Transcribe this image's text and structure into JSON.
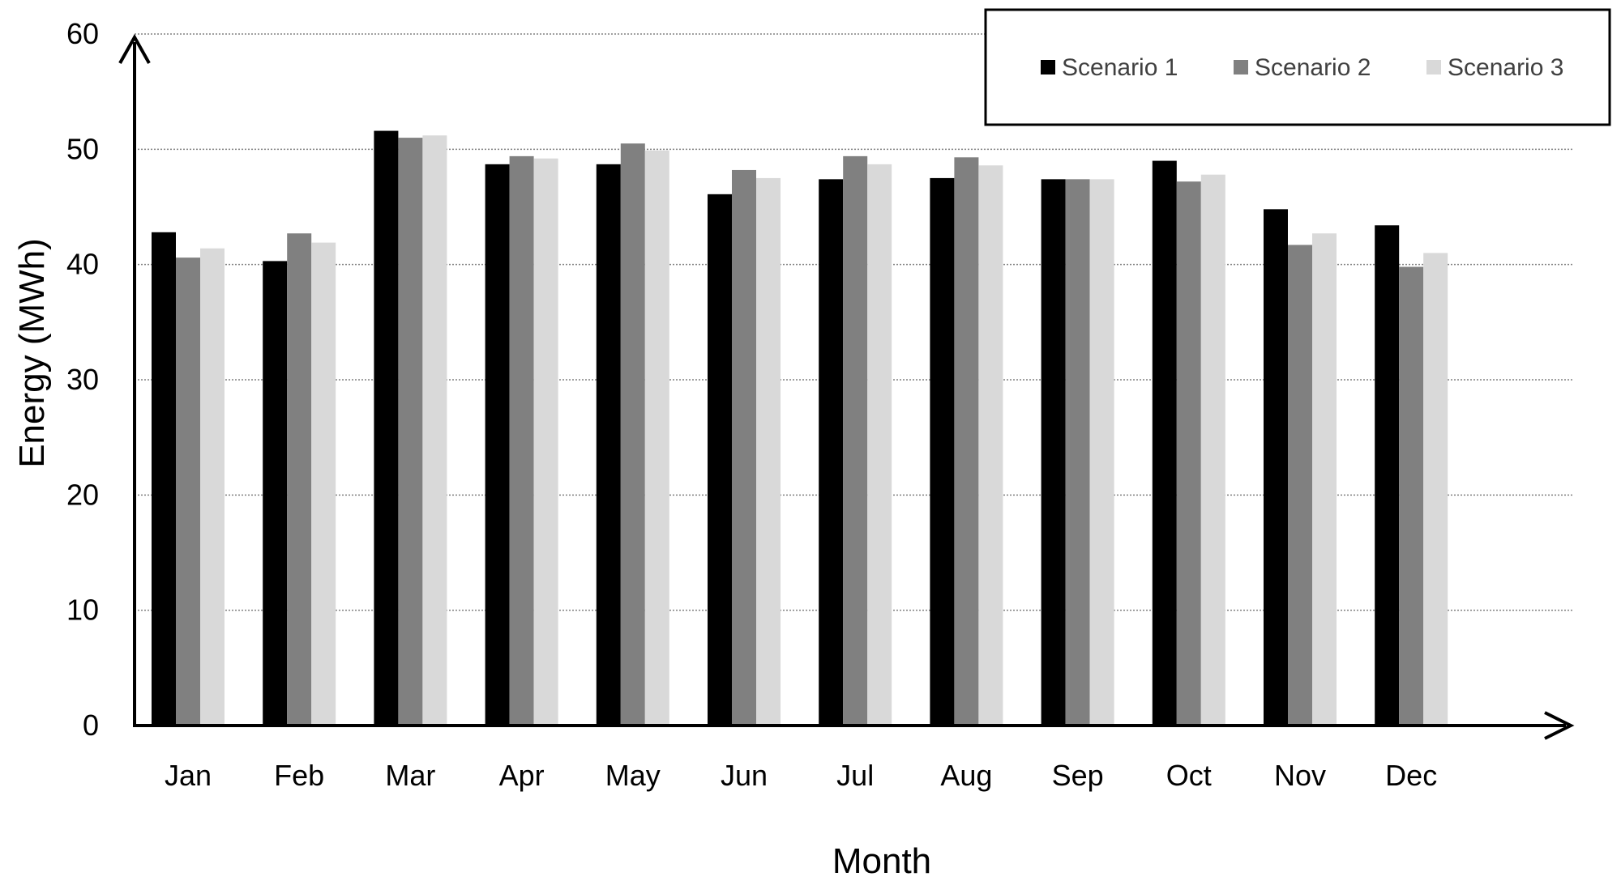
{
  "chart_data": {
    "type": "bar",
    "categories": [
      "Jan",
      "Feb",
      "Mar",
      "Apr",
      "May",
      "Jun",
      "Jul",
      "Aug",
      "Sep",
      "Oct",
      "Nov",
      "Dec"
    ],
    "series": [
      {
        "name": "Scenario 1",
        "color": "#000000",
        "values": [
          42.8,
          40.3,
          51.6,
          48.7,
          48.7,
          46.1,
          47.4,
          47.5,
          47.4,
          49.0,
          44.8,
          43.4
        ]
      },
      {
        "name": "Scenario 2",
        "color": "#808080",
        "values": [
          40.6,
          42.7,
          51.0,
          49.4,
          50.5,
          48.2,
          49.4,
          49.3,
          47.4,
          47.2,
          41.7,
          39.8
        ]
      },
      {
        "name": "Scenario 3",
        "color": "#d9d9d9",
        "values": [
          41.4,
          41.9,
          51.2,
          49.2,
          49.9,
          47.5,
          48.7,
          48.6,
          47.4,
          47.8,
          42.7,
          41.0
        ]
      }
    ],
    "xlabel": "Month",
    "ylabel": "Energy (MWh)",
    "ylim": [
      0,
      60
    ],
    "yticks": [
      0,
      10,
      20,
      30,
      40,
      50,
      60
    ],
    "grid": true,
    "legend_position": "top-right"
  }
}
